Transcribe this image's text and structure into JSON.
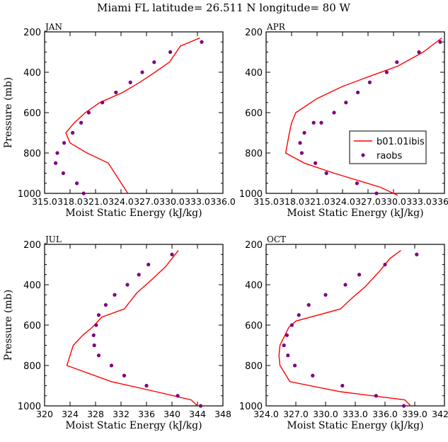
{
  "title": "Miami FL   latitude= 26.511 N longitude= 80 W",
  "legend": {
    "entries": [
      {
        "label": "b01.01ibis",
        "color": "#ff0000",
        "kind": "line"
      },
      {
        "label": "raobs",
        "color": "#800080",
        "kind": "marker"
      }
    ]
  },
  "chart_data": [
    {
      "type": "line",
      "panel_label": "JAN",
      "xlabel": "Moist Static Energy (kJ/kg)",
      "ylabel": "Pressure (mb)",
      "xlim": [
        315.0,
        336.0
      ],
      "ylim": [
        200,
        1000
      ],
      "y_reversed": true,
      "x_ticks": [
        "315.0",
        "318.0",
        "321.0",
        "324.0",
        "327.0",
        "330.0",
        "333.0",
        "336.0"
      ],
      "y_ticks": [
        200,
        400,
        600,
        800,
        1000
      ],
      "series": [
        {
          "name": "b01.01ibis",
          "color": "#ff0000",
          "x": [
            333.3,
            331.0,
            329.7,
            328.0,
            326.2,
            324.2,
            321.5,
            319.8,
            318.5,
            317.5,
            318.0,
            320.0,
            322.5,
            324.8
          ],
          "y": [
            230,
            270,
            350,
            400,
            450,
            500,
            550,
            600,
            650,
            700,
            750,
            800,
            850,
            1000
          ]
        },
        {
          "name": "raobs",
          "color": "#800080",
          "marker": true,
          "x": [
            333.5,
            329.8,
            327.9,
            326.5,
            325.1,
            323.4,
            321.8,
            320.2,
            319.3,
            318.3,
            317.3,
            316.5,
            316.3,
            317.2,
            318.8,
            319.6
          ],
          "y": [
            250,
            300,
            350,
            400,
            450,
            500,
            550,
            600,
            650,
            700,
            750,
            800,
            850,
            900,
            950,
            1000
          ]
        }
      ]
    },
    {
      "type": "line",
      "panel_label": "APR",
      "xlabel": "Moist Static Energy (kJ/kg)",
      "ylabel": "",
      "xlim": [
        315.0,
        336.0
      ],
      "ylim": [
        200,
        1000
      ],
      "y_reversed": true,
      "x_ticks": [
        "315.0",
        "318.0",
        "321.0",
        "324.0",
        "327.0",
        "330.0",
        "333.0",
        "336.0"
      ],
      "y_ticks": [
        200,
        400,
        600,
        800,
        1000
      ],
      "series": [
        {
          "name": "b01.01ibis",
          "color": "#ff0000",
          "x": [
            335.7,
            333.5,
            330.5,
            327.2,
            324.0,
            321.0,
            318.5,
            318.0,
            317.7,
            317.3,
            319.5,
            323.0,
            328.5,
            330.5
          ],
          "y": [
            230,
            300,
            370,
            420,
            470,
            530,
            600,
            650,
            710,
            800,
            850,
            900,
            970,
            1010
          ]
        },
        {
          "name": "raobs",
          "color": "#800080",
          "marker": true,
          "x": [
            335.5,
            333.0,
            330.4,
            329.2,
            327.2,
            325.8,
            324.4,
            323.0,
            321.5,
            320.6,
            319.5,
            319.0,
            319.2,
            320.8,
            322.1,
            325.7,
            328.0
          ],
          "y": [
            250,
            300,
            350,
            400,
            450,
            500,
            550,
            600,
            650,
            650,
            700,
            750,
            800,
            850,
            900,
            950,
            1000
          ]
        }
      ]
    },
    {
      "type": "line",
      "panel_label": "JUL",
      "xlabel": "Moist Static Energy (kJ/kg)",
      "ylabel": "Pressure (mb)",
      "xlim": [
        320,
        348
      ],
      "ylim": [
        200,
        1000
      ],
      "y_reversed": true,
      "x_ticks": [
        "320",
        "324",
        "328",
        "332",
        "336",
        "340",
        "344",
        "348"
      ],
      "y_ticks": [
        200,
        400,
        600,
        800,
        1000
      ],
      "series": [
        {
          "name": "b01.01ibis",
          "color": "#ff0000",
          "x": [
            341.0,
            340.0,
            339.0,
            337.0,
            334.5,
            332.5,
            329.0,
            327.5,
            326.0,
            324.5,
            323.5,
            330.5,
            337.5,
            343.0,
            344.0
          ],
          "y": [
            230,
            270,
            310,
            370,
            440,
            520,
            560,
            610,
            650,
            700,
            800,
            880,
            930,
            970,
            1000
          ]
        },
        {
          "name": "raobs",
          "color": "#800080",
          "marker": true,
          "x": [
            340.0,
            336.3,
            334.8,
            333.0,
            331.0,
            329.6,
            328.5,
            328.1,
            327.7,
            327.8,
            328.5,
            330.5,
            332.5,
            336.0,
            340.9,
            344.5
          ],
          "y": [
            250,
            300,
            350,
            400,
            450,
            500,
            550,
            600,
            650,
            700,
            750,
            800,
            850,
            900,
            950,
            1000
          ]
        }
      ]
    },
    {
      "type": "line",
      "panel_label": "OCT",
      "xlabel": "Moist Static Energy (kJ/kg)",
      "ylabel": "",
      "xlim": [
        324.0,
        342.0
      ],
      "ylim": [
        200,
        1000
      ],
      "y_reversed": true,
      "x_ticks": [
        "324.0",
        "327.0",
        "330.0",
        "333.0",
        "336.0",
        "339.0",
        "342.0"
      ],
      "y_ticks": [
        200,
        400,
        600,
        800,
        1000
      ],
      "series": [
        {
          "name": "b01.01ibis",
          "color": "#ff0000",
          "x": [
            337.6,
            336.5,
            335.5,
            334.0,
            332.8,
            331.5,
            327.0,
            326.3,
            325.4,
            325.3,
            325.4,
            326.4,
            331.5,
            338.0,
            338.6
          ],
          "y": [
            230,
            270,
            330,
            410,
            460,
            520,
            580,
            610,
            700,
            750,
            800,
            880,
            930,
            970,
            1000
          ]
        },
        {
          "name": "raobs",
          "color": "#800080",
          "marker": true,
          "x": [
            339.2,
            336.0,
            333.4,
            332.0,
            330.0,
            328.3,
            327.3,
            326.6,
            326.1,
            325.8,
            326.2,
            326.9,
            328.7,
            331.7,
            335.1,
            337.9
          ],
          "y": [
            250,
            300,
            350,
            400,
            450,
            500,
            550,
            600,
            650,
            700,
            750,
            800,
            850,
            900,
            950,
            1000
          ]
        }
      ]
    }
  ]
}
